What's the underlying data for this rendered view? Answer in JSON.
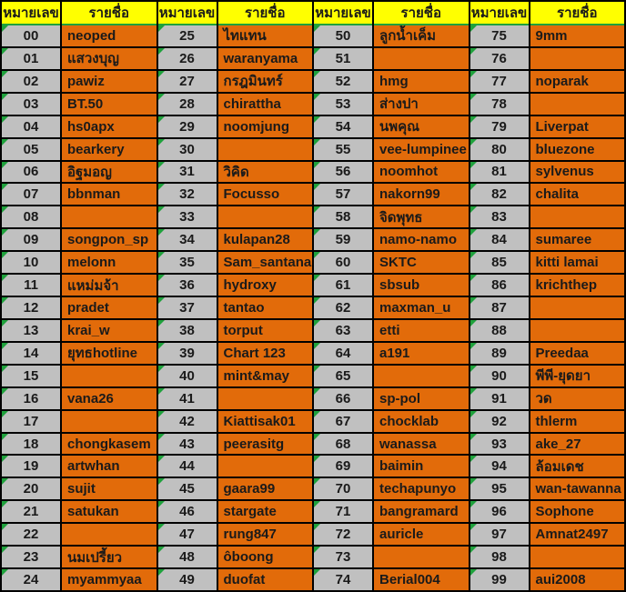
{
  "header": {
    "number_label": "หมายเลข",
    "name_label": "รายชื่อ"
  },
  "colors": {
    "header_bg": "#ffff00",
    "number_bg": "#c0c0c0",
    "name_bg": "#e26b0a",
    "grid_line": "#000000",
    "indicator_green": "#1fa13c",
    "text": "#1a1a1a"
  },
  "icons": {
    "corner_indicator": "green-triangle"
  },
  "groups": [
    {
      "entries": [
        {
          "number": "00",
          "name": "neoped"
        },
        {
          "number": "01",
          "name": "แสวงบุญ"
        },
        {
          "number": "02",
          "name": "pawiz"
        },
        {
          "number": "03",
          "name": "BT.50"
        },
        {
          "number": "04",
          "name": "hs0apx"
        },
        {
          "number": "05",
          "name": "bearkery"
        },
        {
          "number": "06",
          "name": "อิฐมอญ"
        },
        {
          "number": "07",
          "name": "bbnman"
        },
        {
          "number": "08",
          "name": ""
        },
        {
          "number": "09",
          "name": "songpon_sp"
        },
        {
          "number": "10",
          "name": "melonn"
        },
        {
          "number": "11",
          "name": "แหม่มจ้า"
        },
        {
          "number": "12",
          "name": "pradet"
        },
        {
          "number": "13",
          "name": "krai_w"
        },
        {
          "number": "14",
          "name": "ยุทธhotline"
        },
        {
          "number": "15",
          "name": ""
        },
        {
          "number": "16",
          "name": "vana26"
        },
        {
          "number": "17",
          "name": ""
        },
        {
          "number": "18",
          "name": "chongkasem"
        },
        {
          "number": "19",
          "name": "artwhan"
        },
        {
          "number": "20",
          "name": "sujit"
        },
        {
          "number": "21",
          "name": "satukan"
        },
        {
          "number": "22",
          "name": ""
        },
        {
          "number": "23",
          "name": "นมเปรี้ยว"
        },
        {
          "number": "24",
          "name": "myammyaa"
        }
      ]
    },
    {
      "entries": [
        {
          "number": "25",
          "name": "ไทแทน"
        },
        {
          "number": "26",
          "name": "waranyama"
        },
        {
          "number": "27",
          "name": "กรฎมินทร์"
        },
        {
          "number": "28",
          "name": "chirattha"
        },
        {
          "number": "29",
          "name": "noomjung"
        },
        {
          "number": "30",
          "name": ""
        },
        {
          "number": "31",
          "name": "วิคิด"
        },
        {
          "number": "32",
          "name": "Focusso"
        },
        {
          "number": "33",
          "name": ""
        },
        {
          "number": "34",
          "name": "kulapan28"
        },
        {
          "number": "35",
          "name": "Sam_santana"
        },
        {
          "number": "36",
          "name": "hydroxy"
        },
        {
          "number": "37",
          "name": "tantao"
        },
        {
          "number": "38",
          "name": "torput"
        },
        {
          "number": "39",
          "name": "Chart 123"
        },
        {
          "number": "40",
          "name": "mint&may"
        },
        {
          "number": "41",
          "name": ""
        },
        {
          "number": "42",
          "name": "Kiattisak01"
        },
        {
          "number": "43",
          "name": "peerasitg"
        },
        {
          "number": "44",
          "name": ""
        },
        {
          "number": "45",
          "name": "gaara99"
        },
        {
          "number": "46",
          "name": "stargate"
        },
        {
          "number": "47",
          "name": "rung847"
        },
        {
          "number": "48",
          "name": "ôboong"
        },
        {
          "number": "49",
          "name": "duofat"
        }
      ]
    },
    {
      "entries": [
        {
          "number": "50",
          "name": "ลูกน้ำเค็ม"
        },
        {
          "number": "51",
          "name": ""
        },
        {
          "number": "52",
          "name": "hmg"
        },
        {
          "number": "53",
          "name": "ส่างปา"
        },
        {
          "number": "54",
          "name": "นพคุณ"
        },
        {
          "number": "55",
          "name": "vee-lumpinee"
        },
        {
          "number": "56",
          "name": "noomhot"
        },
        {
          "number": "57",
          "name": "nakorn99"
        },
        {
          "number": "58",
          "name": "จิดพุทธ"
        },
        {
          "number": "59",
          "name": "namo-namo"
        },
        {
          "number": "60",
          "name": "SKTC"
        },
        {
          "number": "61",
          "name": "sbsub"
        },
        {
          "number": "62",
          "name": "maxman_u"
        },
        {
          "number": "63",
          "name": "etti"
        },
        {
          "number": "64",
          "name": "a191"
        },
        {
          "number": "65",
          "name": ""
        },
        {
          "number": "66",
          "name": "sp-pol"
        },
        {
          "number": "67",
          "name": "chocklab"
        },
        {
          "number": "68",
          "name": "wanassa"
        },
        {
          "number": "69",
          "name": "baimin"
        },
        {
          "number": "70",
          "name": "techapunyo"
        },
        {
          "number": "71",
          "name": "bangramard"
        },
        {
          "number": "72",
          "name": "auricle"
        },
        {
          "number": "73",
          "name": ""
        },
        {
          "number": "74",
          "name": "Berial004"
        }
      ]
    },
    {
      "entries": [
        {
          "number": "75",
          "name": "9mm"
        },
        {
          "number": "76",
          "name": ""
        },
        {
          "number": "77",
          "name": "noparak"
        },
        {
          "number": "78",
          "name": ""
        },
        {
          "number": "79",
          "name": "Liverpat"
        },
        {
          "number": "80",
          "name": "bluezone"
        },
        {
          "number": "81",
          "name": "sylvenus"
        },
        {
          "number": "82",
          "name": "chalita"
        },
        {
          "number": "83",
          "name": ""
        },
        {
          "number": "84",
          "name": "sumaree"
        },
        {
          "number": "85",
          "name": "kitti lamai"
        },
        {
          "number": "86",
          "name": "krichthep"
        },
        {
          "number": "87",
          "name": ""
        },
        {
          "number": "88",
          "name": ""
        },
        {
          "number": "89",
          "name": "Preedaa"
        },
        {
          "number": "90",
          "name": "พีพี-ยุดยา"
        },
        {
          "number": "91",
          "name": "วด"
        },
        {
          "number": "92",
          "name": "thlerm"
        },
        {
          "number": "93",
          "name": "ake_27"
        },
        {
          "number": "94",
          "name": "ล้อมเดช"
        },
        {
          "number": "95",
          "name": "wan-tawanna"
        },
        {
          "number": "96",
          "name": "Sophone"
        },
        {
          "number": "97",
          "name": "Amnat2497"
        },
        {
          "number": "98",
          "name": ""
        },
        {
          "number": "99",
          "name": "aui2008"
        }
      ]
    }
  ]
}
